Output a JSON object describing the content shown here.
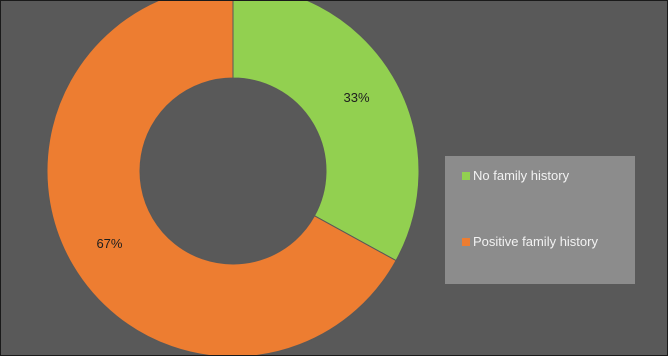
{
  "chart_data": {
    "type": "pie",
    "donut": true,
    "categories": [
      "No family history",
      "Positive family history"
    ],
    "values": [
      33,
      67
    ],
    "data_labels": [
      "33%",
      "67%"
    ],
    "colors": [
      "#92d050",
      "#ed7d31"
    ],
    "background": "#595959",
    "legend_background": "#8c8c8c",
    "legend_position": "right",
    "title": "",
    "xlabel": "",
    "ylabel": ""
  }
}
